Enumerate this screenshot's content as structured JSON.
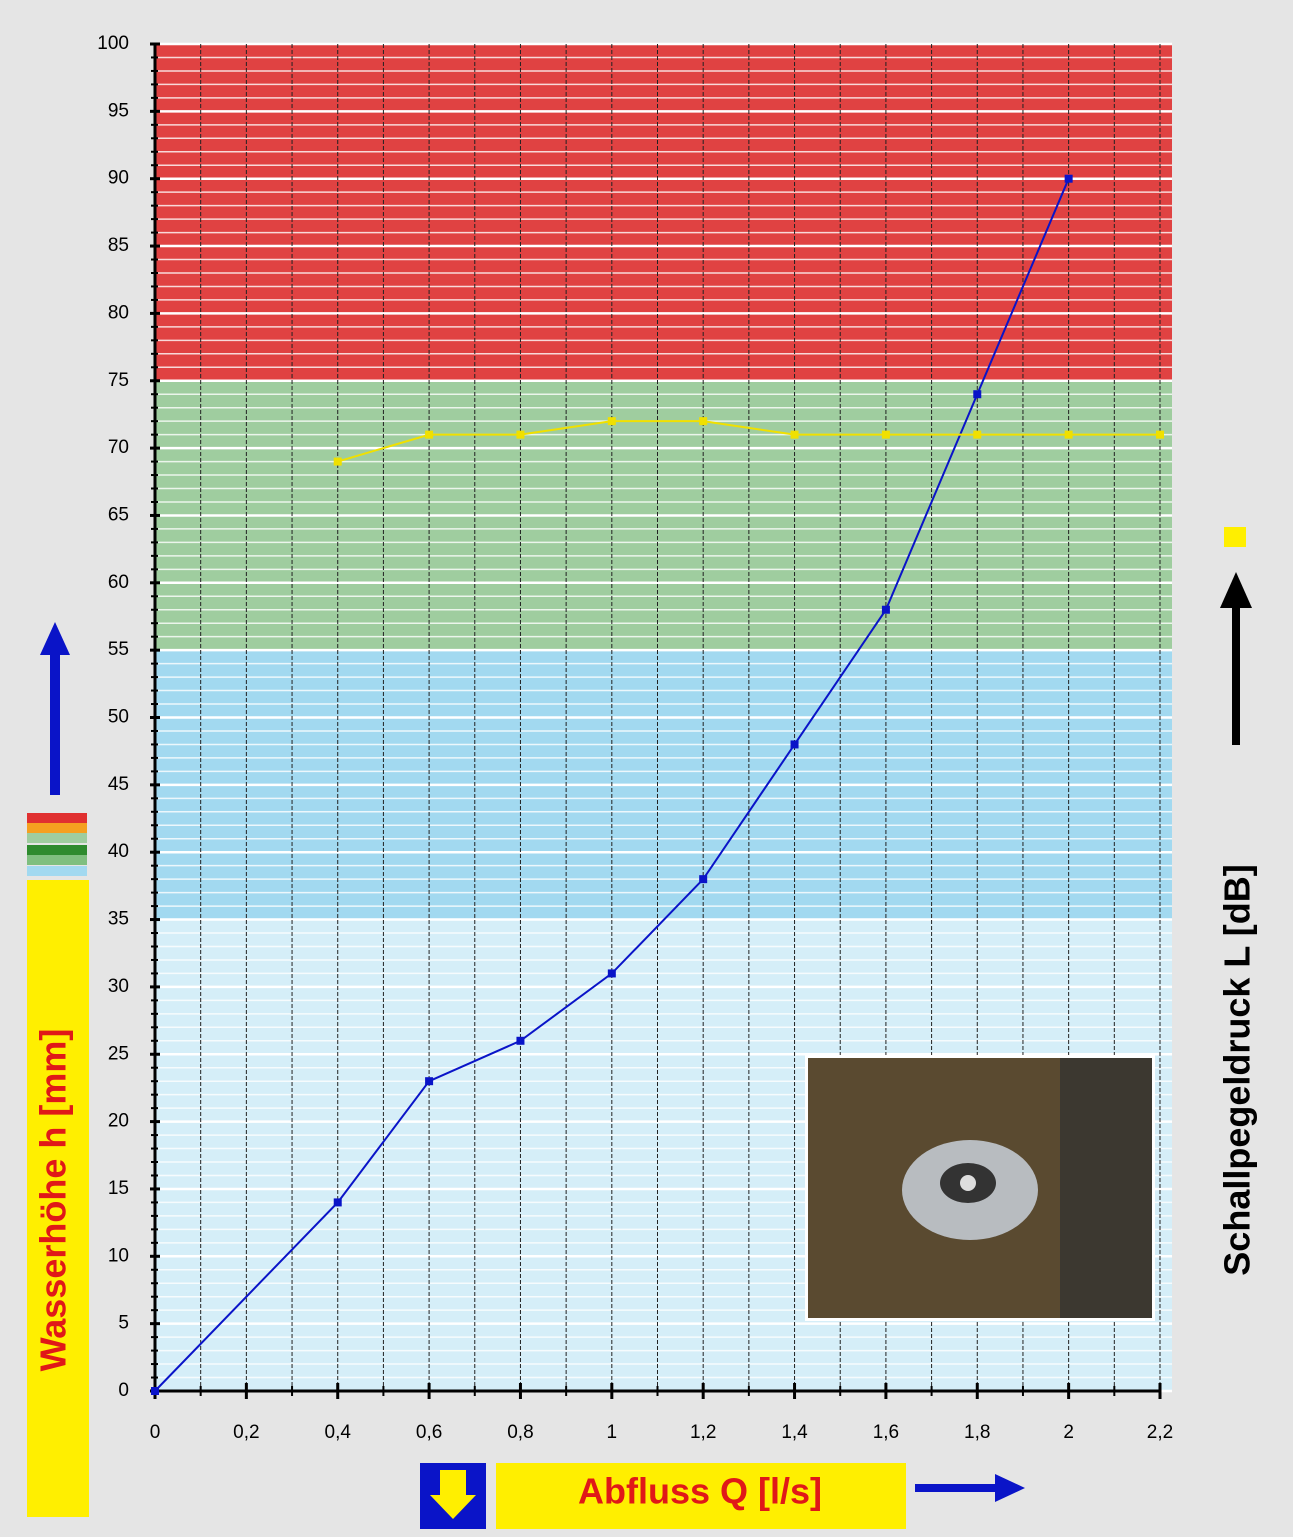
{
  "chart_data": {
    "type": "line",
    "x_label": "Abfluss Q [l/s]",
    "y_label": "Wasserhöhe h [mm]",
    "y2_label": "Schallpegeldruck L [dB]",
    "xlim": [
      0,
      2.2
    ],
    "ylim": [
      0,
      100
    ],
    "xticks": [
      0,
      {
        "value": 0.2,
        "label": "0,2"
      },
      {
        "value": 0.4,
        "label": "0,4"
      },
      {
        "value": 0.6,
        "label": "0,6"
      },
      {
        "value": 0.8,
        "label": "0,8"
      },
      1,
      {
        "value": 1.2,
        "label": "1,2"
      },
      {
        "value": 1.4,
        "label": "1,4"
      },
      {
        "value": 1.6,
        "label": "1,6"
      },
      {
        "value": 1.8,
        "label": "1,8"
      },
      2,
      {
        "value": 2.2,
        "label": "2,2"
      }
    ],
    "yticks": [
      0,
      5,
      10,
      15,
      20,
      25,
      30,
      35,
      40,
      45,
      50,
      55,
      60,
      65,
      70,
      75,
      80,
      85,
      90,
      95,
      100
    ],
    "zones": [
      {
        "from": 0,
        "to": 35,
        "color": "#d5eef8"
      },
      {
        "from": 35,
        "to": 55,
        "color": "#a2d9f0"
      },
      {
        "from": 55,
        "to": 75,
        "color": "#9fcd9f"
      },
      {
        "from": 75,
        "to": 100,
        "color": "#e04242"
      }
    ],
    "series": [
      {
        "color": "#0a14c8",
        "x": [
          0,
          0.4,
          0.6,
          0.8,
          1,
          1.2,
          1.4,
          1.6,
          1.8,
          2
        ],
        "values": [
          0,
          14,
          23,
          26,
          31,
          38,
          48,
          58,
          74,
          90
        ]
      },
      {
        "color": "#f0e000",
        "x": [
          0.4,
          0.6,
          0.8,
          1,
          1.2,
          1.4,
          1.6,
          1.8,
          2,
          2.2
        ],
        "values": [
          69,
          71,
          71,
          72,
          72,
          71,
          71,
          71,
          71,
          71
        ]
      }
    ]
  }
}
